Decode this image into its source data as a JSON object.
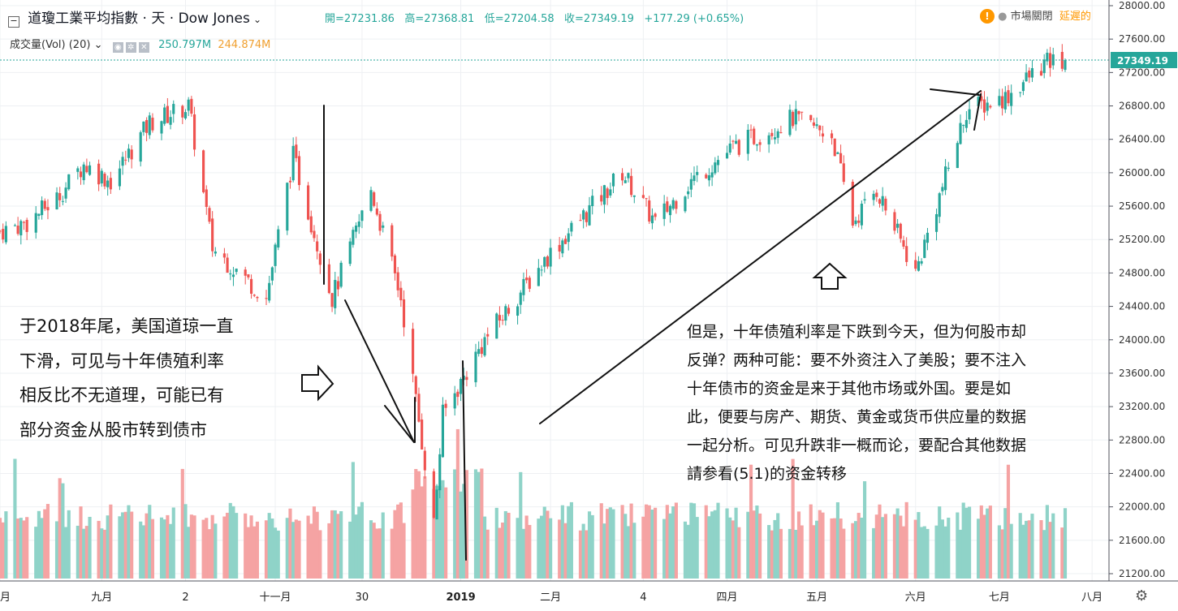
{
  "header": {
    "symbol": "道瓊工業平均指數 · 天 · Dow Jones",
    "open_label": "開=27231.86",
    "high_label": "高=27368.81",
    "low_label": "低=27204.58",
    "close_label": "收=27349.19",
    "change_label": "+177.29 (+0.65%)",
    "market_status": "市場關閉",
    "delayed": "延遲的",
    "volume_title": "成交量(Vol) (20)",
    "vol_value_1": "250.797M",
    "vol_value_2": "244.874M",
    "last_price_tag": "27349.19"
  },
  "annotations": {
    "left": [
      "于2018年尾，美国道琼一直",
      "下滑，可见与十年债殖利率",
      "相反比不无道理，可能已有",
      "部分资金从股市转到债市"
    ],
    "right": [
      "但是，十年债殖利率是下跌到今天，但为何股市却",
      "反弹？两种可能：要不外资注入了美股；要不注入",
      "十年债市的资金是来于其他市场或外国。要是如",
      "此，便要与房产、期货、黄金或货币供应量的数据",
      "一起分析。可见升跌非一概而论，要配合其他数据",
      "請参看(5.1)的资金转移"
    ]
  },
  "colors": {
    "up": "#26a69a",
    "down": "#ef5350",
    "vol_up": "#8fd3c8",
    "vol_down": "#f5a3a3",
    "grid": "#eef0f3",
    "last_price": "#26a69a"
  },
  "chart_data": {
    "type": "candlestick",
    "title": "道瓊工業平均指數 · 天 · Dow Jones",
    "ylim": [
      21100,
      28100
    ],
    "y_ticks": [
      "28000.00",
      "27600.00",
      "27200.00",
      "26800.00",
      "26400.00",
      "26000.00",
      "25600.00",
      "25200.00",
      "24800.00",
      "24400.00",
      "24000.00",
      "23600.00",
      "23200.00",
      "22800.00",
      "22400.00",
      "22000.00",
      "21600.00",
      "21200.00"
    ],
    "x_tick_labels": [
      "八月",
      "九月",
      "2",
      "十一月",
      "30",
      "2019",
      "二月",
      "4",
      "四月",
      "五月",
      "六月",
      "七月",
      "八月"
    ],
    "last": {
      "open": 27231.86,
      "high": 27368.81,
      "low": 27204.58,
      "close": 27349.19,
      "change": 177.29,
      "change_pct": 0.65
    },
    "keypoints": [
      {
        "date": "2018-08-01",
        "close": 25300
      },
      {
        "date": "2018-08-10",
        "close": 25400
      },
      {
        "date": "2018-08-20",
        "close": 25700
      },
      {
        "date": "2018-08-29",
        "close": 26100
      },
      {
        "date": "2018-09-07",
        "close": 25900
      },
      {
        "date": "2018-09-20",
        "close": 26600
      },
      {
        "date": "2018-10-03",
        "close": 26800
      },
      {
        "date": "2018-10-11",
        "close": 25100
      },
      {
        "date": "2018-10-29",
        "close": 24500
      },
      {
        "date": "2018-11-07",
        "close": 26200
      },
      {
        "date": "2018-11-20",
        "close": 24500
      },
      {
        "date": "2018-12-03",
        "close": 25800
      },
      {
        "date": "2018-12-13",
        "close": 24500
      },
      {
        "date": "2018-12-24",
        "close": 21800
      },
      {
        "date": "2018-12-27",
        "close": 23100
      },
      {
        "date": "2019-01-10",
        "close": 24000
      },
      {
        "date": "2019-01-31",
        "close": 25000
      },
      {
        "date": "2019-02-25",
        "close": 26000
      },
      {
        "date": "2019-03-08",
        "close": 25400
      },
      {
        "date": "2019-03-20",
        "close": 25900
      },
      {
        "date": "2019-04-03",
        "close": 26300
      },
      {
        "date": "2019-04-23",
        "close": 26650
      },
      {
        "date": "2019-05-06",
        "close": 26450
      },
      {
        "date": "2019-05-13",
        "close": 25400
      },
      {
        "date": "2019-05-21",
        "close": 25800
      },
      {
        "date": "2019-06-03",
        "close": 24800
      },
      {
        "date": "2019-06-20",
        "close": 26750
      },
      {
        "date": "2019-07-03",
        "close": 26900
      },
      {
        "date": "2019-07-16",
        "close": 27300
      },
      {
        "date": "2019-07-23",
        "close": 27349.19
      }
    ],
    "volume_ylim_M": [
      0,
      520
    ]
  }
}
